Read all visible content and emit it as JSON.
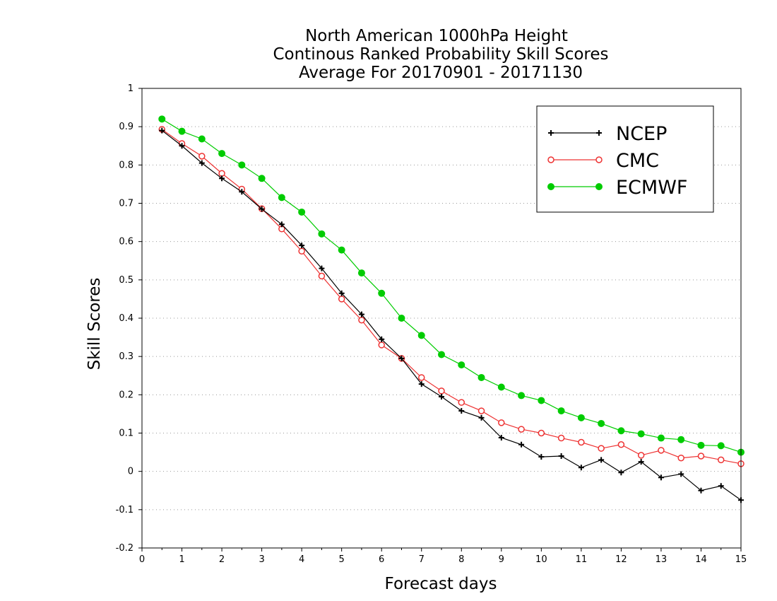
{
  "chart_data": {
    "type": "line",
    "title": [
      "North American 1000hPa Height",
      "Continous Ranked Probability Skill Scores",
      "Average For 20170901 - 20171130"
    ],
    "xlabel": "Forecast days",
    "ylabel": "Skill Scores",
    "xlim": [
      0,
      15
    ],
    "ylim": [
      -0.2,
      1
    ],
    "xticks": [
      "0",
      "1",
      "2",
      "3",
      "4",
      "5",
      "6",
      "7",
      "8",
      "9",
      "10",
      "11",
      "12",
      "13",
      "14",
      "15"
    ],
    "yticks": [
      "-0.2",
      "-0.1",
      "0",
      "0.1",
      "0.2",
      "0.3",
      "0.4",
      "0.5",
      "0.6",
      "0.7",
      "0.8",
      "0.9",
      "1"
    ],
    "grid": "horizontal dotted",
    "legend_position": "top-right",
    "x": [
      0.5,
      1,
      1.5,
      2,
      2.5,
      3,
      3.5,
      4,
      4.5,
      5,
      5.5,
      6,
      6.5,
      7,
      7.5,
      8,
      8.5,
      9,
      9.5,
      10,
      10.5,
      11,
      11.5,
      12,
      12.5,
      13,
      13.5,
      14,
      14.5,
      15
    ],
    "series": [
      {
        "name": "NCEP",
        "color": "#000000",
        "marker": "plus",
        "values": [
          0.89,
          0.85,
          0.805,
          0.765,
          0.73,
          0.685,
          0.645,
          0.59,
          0.53,
          0.465,
          0.41,
          0.345,
          0.295,
          0.228,
          0.195,
          0.158,
          0.14,
          0.088,
          0.07,
          0.038,
          0.04,
          0.01,
          0.03,
          -0.003,
          0.025,
          -0.016,
          -0.007,
          -0.05,
          -0.038,
          -0.075
        ]
      },
      {
        "name": "CMC",
        "color": "#ee3333",
        "marker": "open-circle",
        "values": [
          0.893,
          0.856,
          0.823,
          0.778,
          0.737,
          0.686,
          0.633,
          0.575,
          0.51,
          0.45,
          0.395,
          0.33,
          0.295,
          0.245,
          0.21,
          0.18,
          0.158,
          0.127,
          0.11,
          0.1,
          0.087,
          0.076,
          0.06,
          0.07,
          0.042,
          0.055,
          0.035,
          0.04,
          0.03,
          0.02
        ]
      },
      {
        "name": "ECMWF",
        "color": "#00cc00",
        "marker": "filled-circle",
        "values": [
          0.92,
          0.888,
          0.868,
          0.83,
          0.8,
          0.765,
          0.715,
          0.677,
          0.62,
          0.578,
          0.518,
          0.465,
          0.4,
          0.355,
          0.305,
          0.278,
          0.245,
          0.22,
          0.198,
          0.185,
          0.158,
          0.14,
          0.125,
          0.106,
          0.098,
          0.087,
          0.083,
          0.068,
          0.067,
          0.05
        ]
      }
    ]
  }
}
